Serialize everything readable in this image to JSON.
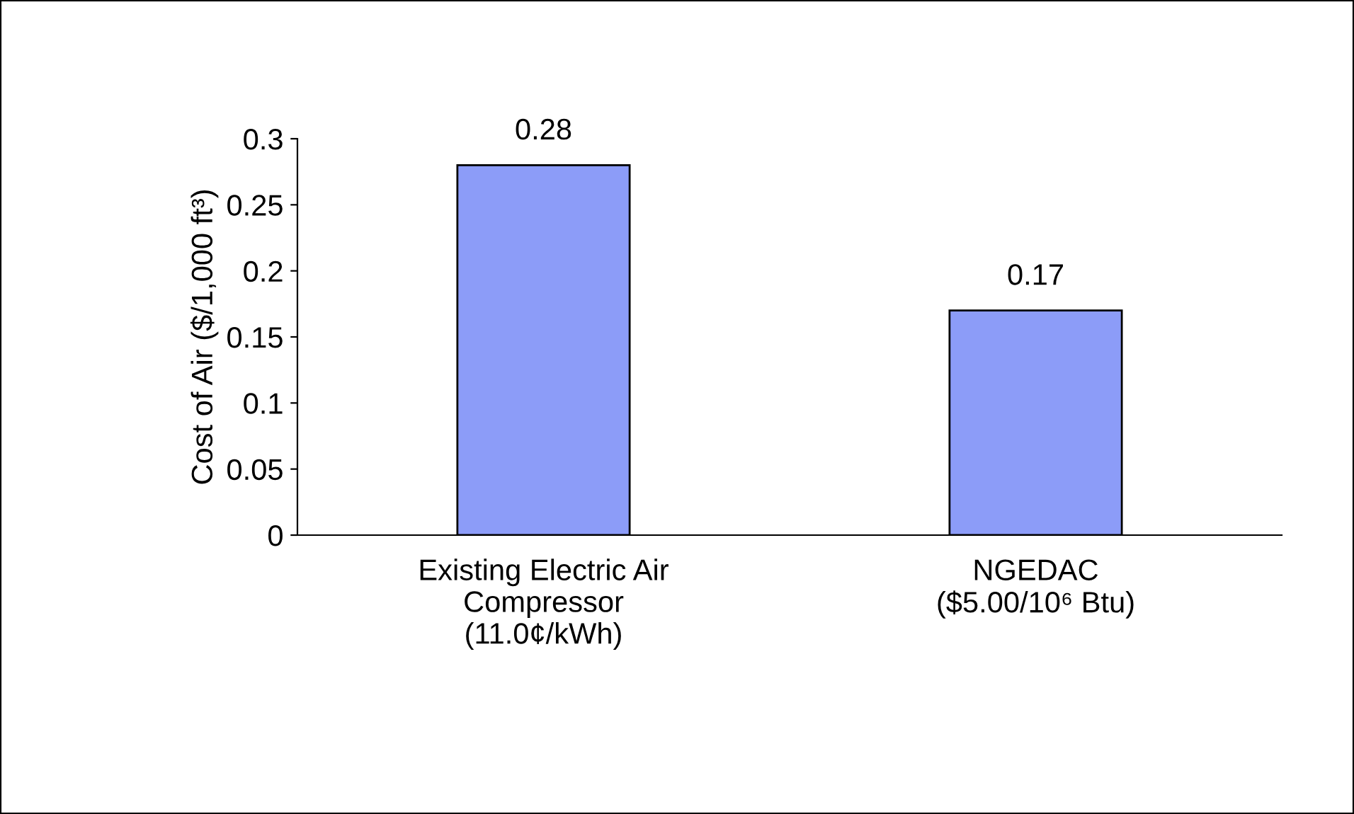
{
  "chart_data": {
    "type": "bar",
    "ylabel": "Cost of Air ($/1,000 ft³)",
    "categories": [
      "Existing Electric Air\nCompressor\n(11.0¢/kWh)",
      "NGEDAC\n($5.00/10⁶ Btu)"
    ],
    "values": [
      0.28,
      0.17
    ],
    "color": "#8c9cf8",
    "ylim": [
      0,
      0.3
    ],
    "yticks": [
      0,
      0.05,
      0.1,
      0.15,
      0.2,
      0.25,
      0.3
    ],
    "data_labels": true,
    "grid": false,
    "legend": false
  }
}
